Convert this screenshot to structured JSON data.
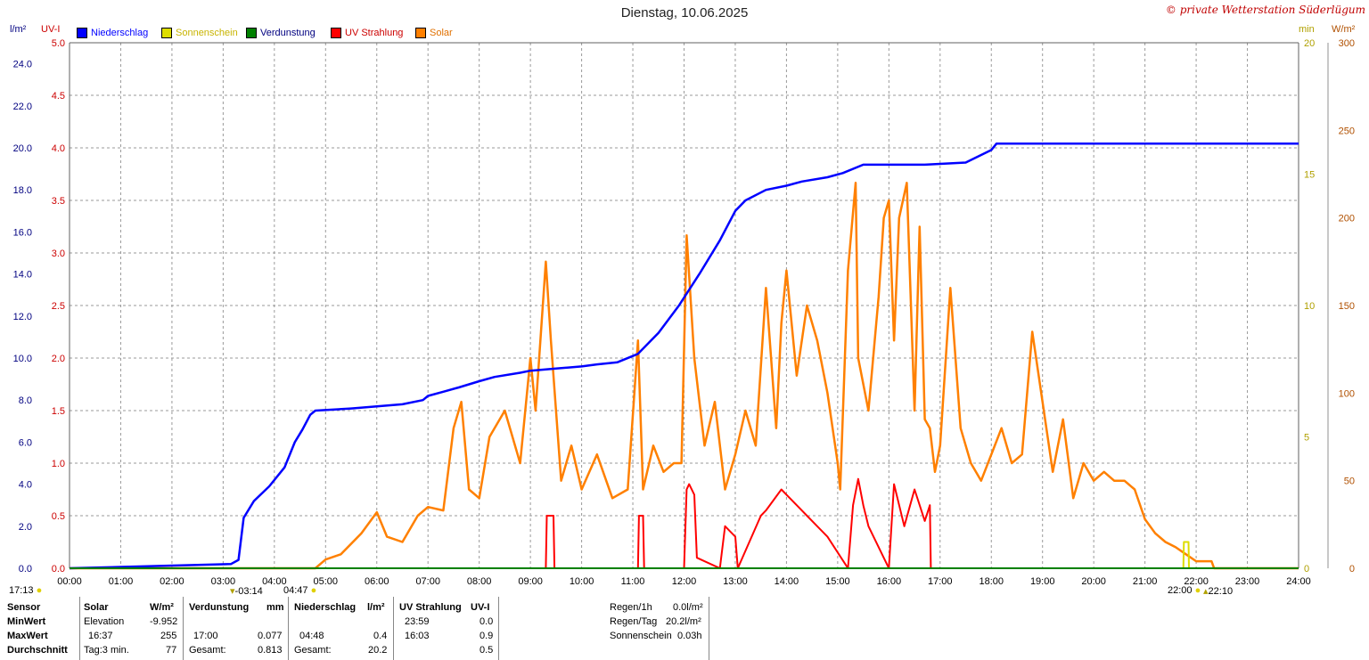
{
  "header": {
    "title": "Dienstag, 10.06.2025",
    "credit": "© private Wetterstation Süderlügum"
  },
  "axes": {
    "left_unit": "l/m²",
    "left2_unit": "UV-I",
    "right_unit": "min",
    "right2_unit": "W/m²"
  },
  "legend": [
    {
      "label": "Niederschlag",
      "color": "#0000ff"
    },
    {
      "label": "Sonnenschein",
      "color": "#dddd00"
    },
    {
      "label": "Verdunstung",
      "color": "#008000"
    },
    {
      "label": "UV Strahlung",
      "color": "#ff0000"
    },
    {
      "label": "Solar",
      "color": "#ff8000"
    }
  ],
  "sun": {
    "sunrise_prev": "17:13",
    "twilight_start": "03:14",
    "sunrise": "04:47",
    "sunset": "22:00",
    "twilight_end": "22:10"
  },
  "chart_data": {
    "type": "line",
    "title": "Dienstag, 10.06.2025",
    "xlabel": "",
    "x_ticks": [
      "00:00",
      "01:00",
      "02:00",
      "03:00",
      "04:00",
      "05:00",
      "06:00",
      "07:00",
      "08:00",
      "09:00",
      "10:00",
      "11:00",
      "12:00",
      "13:00",
      "14:00",
      "15:00",
      "16:00",
      "17:00",
      "18:00",
      "19:00",
      "20:00",
      "21:00",
      "22:00",
      "23:00",
      "24:00"
    ],
    "xlim": [
      0,
      24
    ],
    "axis_rain": {
      "unit": "l/m²",
      "ylim": [
        0,
        25
      ],
      "ticks": [
        "0.0",
        "2.0",
        "4.0",
        "6.0",
        "8.0",
        "10.0",
        "12.0",
        "14.0",
        "16.0",
        "18.0",
        "20.0",
        "22.0",
        "24.0"
      ]
    },
    "axis_uv": {
      "unit": "UV-I",
      "ylim": [
        0,
        5
      ],
      "ticks": [
        "0.0",
        "0.5",
        "1.0",
        "1.5",
        "2.0",
        "2.5",
        "3.0",
        "3.5",
        "4.0",
        "4.5",
        "5.0"
      ]
    },
    "axis_sun": {
      "unit": "min",
      "ylim": [
        0,
        20
      ],
      "ticks": [
        "0",
        "5",
        "10",
        "15",
        "20"
      ]
    },
    "axis_solar": {
      "unit": "W/m²",
      "ylim": [
        0,
        300
      ],
      "ticks": [
        "0",
        "50",
        "100",
        "150",
        "200",
        "250",
        "300"
      ]
    },
    "series": [
      {
        "name": "Niederschlag",
        "axis": "rain",
        "x": [
          0,
          3.15,
          3.3,
          3.4,
          3.6,
          3.9,
          4.2,
          4.4,
          4.55,
          4.7,
          4.8,
          5.5,
          6.5,
          6.9,
          7.0,
          7.3,
          7.6,
          8.0,
          8.3,
          8.8,
          9.0,
          9.5,
          10.0,
          10.3,
          10.7,
          11.1,
          11.5,
          11.9,
          12.3,
          12.7,
          13.0,
          13.2,
          13.6,
          14.0,
          14.3,
          14.8,
          15.1,
          15.5,
          16.0,
          16.7,
          17.5,
          18.0,
          18.1,
          24.0
        ],
        "values": [
          0,
          0.2,
          0.4,
          2.4,
          3.2,
          3.9,
          4.8,
          6.0,
          6.6,
          7.3,
          7.5,
          7.6,
          7.8,
          8.0,
          8.2,
          8.4,
          8.6,
          8.9,
          9.1,
          9.3,
          9.4,
          9.5,
          9.6,
          9.7,
          9.8,
          10.2,
          11.2,
          12.5,
          14.0,
          15.6,
          17.0,
          17.5,
          18.0,
          18.2,
          18.4,
          18.6,
          18.8,
          19.2,
          19.2,
          19.2,
          19.3,
          19.9,
          20.2,
          20.2
        ]
      },
      {
        "name": "Solar",
        "axis": "solar",
        "x": [
          0,
          4.8,
          5.0,
          5.3,
          5.7,
          6.0,
          6.2,
          6.5,
          6.8,
          7.0,
          7.3,
          7.5,
          7.65,
          7.8,
          8.0,
          8.2,
          8.5,
          8.8,
          9.0,
          9.1,
          9.3,
          9.4,
          9.6,
          9.8,
          10.0,
          10.3,
          10.6,
          10.9,
          11.1,
          11.2,
          11.4,
          11.6,
          11.8,
          11.95,
          12.05,
          12.2,
          12.4,
          12.6,
          12.8,
          13.0,
          13.2,
          13.4,
          13.6,
          13.8,
          13.9,
          14.0,
          14.2,
          14.4,
          14.6,
          14.8,
          15.0,
          15.05,
          15.2,
          15.35,
          15.4,
          15.6,
          15.8,
          15.9,
          16.0,
          16.1,
          16.2,
          16.35,
          16.5,
          16.6,
          16.7,
          16.8,
          16.9,
          17.0,
          17.2,
          17.4,
          17.6,
          17.8,
          18.0,
          18.2,
          18.4,
          18.6,
          18.8,
          19.0,
          19.2,
          19.4,
          19.6,
          19.8,
          20.0,
          20.2,
          20.4,
          20.6,
          20.8,
          21.0,
          21.2,
          21.4,
          21.6,
          21.8,
          22.0,
          22.2,
          22.3,
          22.35,
          24.0
        ],
        "values": [
          0,
          0,
          5,
          8,
          20,
          32,
          18,
          15,
          30,
          35,
          33,
          80,
          95,
          45,
          40,
          75,
          90,
          60,
          120,
          90,
          175,
          130,
          50,
          70,
          45,
          65,
          40,
          45,
          130,
          45,
          70,
          55,
          60,
          60,
          190,
          120,
          70,
          95,
          45,
          65,
          90,
          70,
          160,
          80,
          140,
          170,
          110,
          150,
          130,
          100,
          60,
          45,
          170,
          220,
          120,
          90,
          155,
          200,
          210,
          130,
          200,
          220,
          90,
          195,
          85,
          80,
          55,
          70,
          160,
          80,
          60,
          50,
          65,
          80,
          60,
          65,
          135,
          95,
          55,
          85,
          40,
          60,
          50,
          55,
          50,
          50,
          45,
          28,
          20,
          15,
          12,
          8,
          4,
          4,
          4,
          0,
          0
        ]
      },
      {
        "name": "UV Strahlung",
        "axis": "uv",
        "x": [
          0,
          9.3,
          9.32,
          9.45,
          9.47,
          11.1,
          11.12,
          11.2,
          11.22,
          12.0,
          12.05,
          12.1,
          12.2,
          12.25,
          12.7,
          12.8,
          13.0,
          13.05,
          13.5,
          13.6,
          13.9,
          14.0,
          14.2,
          14.4,
          14.6,
          14.8,
          15.2,
          15.3,
          15.4,
          15.5,
          15.6,
          16.0,
          16.1,
          16.3,
          16.5,
          16.7,
          16.8,
          16.82,
          24.0
        ],
        "values": [
          0,
          0,
          0.5,
          0.5,
          0,
          0,
          0.5,
          0.5,
          0,
          0,
          0.75,
          0.8,
          0.7,
          0.1,
          0,
          0.4,
          0.3,
          0,
          0.5,
          0.55,
          0.75,
          0.7,
          0.6,
          0.5,
          0.4,
          0.3,
          0,
          0.6,
          0.85,
          0.6,
          0.4,
          0,
          0.8,
          0.4,
          0.75,
          0.45,
          0.6,
          0,
          0
        ]
      },
      {
        "name": "Sonnenschein",
        "axis": "sun",
        "x": [
          0,
          21.75,
          21.76,
          21.85,
          21.86,
          24.0
        ],
        "values": [
          0,
          0,
          1.0,
          1.0,
          0,
          0
        ]
      },
      {
        "name": "Verdunstung",
        "axis": "rain",
        "x": [
          0,
          24.0
        ],
        "values": [
          0,
          0
        ]
      }
    ],
    "grid": true,
    "legend_position": "top-left"
  },
  "stats": {
    "headers": [
      "Sensor",
      "Solar",
      "W/m²",
      "Verdunstung",
      "mm",
      "Niederschlag",
      "l/m²",
      "UV Strahlung",
      "UV-I"
    ],
    "row_labels": [
      "MinWert",
      "MaxWert",
      "Durchschnitt"
    ],
    "solar": {
      "min_label": "Elevation",
      "min_value": "-9.952",
      "max_time": "16:37",
      "max_value": "255",
      "avg_label": "Tag:3 min.",
      "avg_value": "77"
    },
    "verdunstung": {
      "max_time": "17:00",
      "max_value": "0.077",
      "total_label": "Gesamt:",
      "total_value": "0.813"
    },
    "niederschlag": {
      "max_time": "04:48",
      "max_value": "0.4",
      "total_label": "Gesamt:",
      "total_value": "20.2"
    },
    "uv": {
      "min_time": "23:59",
      "min_value": "0.0",
      "max_time": "16:03",
      "max_value": "0.9",
      "avg_value": "0.5"
    },
    "summary": {
      "regen_1h_label": "Regen/1h",
      "regen_1h_value": "0.0l/m²",
      "regen_tag_label": "Regen/Tag",
      "regen_tag_value": "20.2l/m²",
      "sonnenschein_label": "Sonnenschein",
      "sonnenschein_value": "0.03h"
    }
  }
}
